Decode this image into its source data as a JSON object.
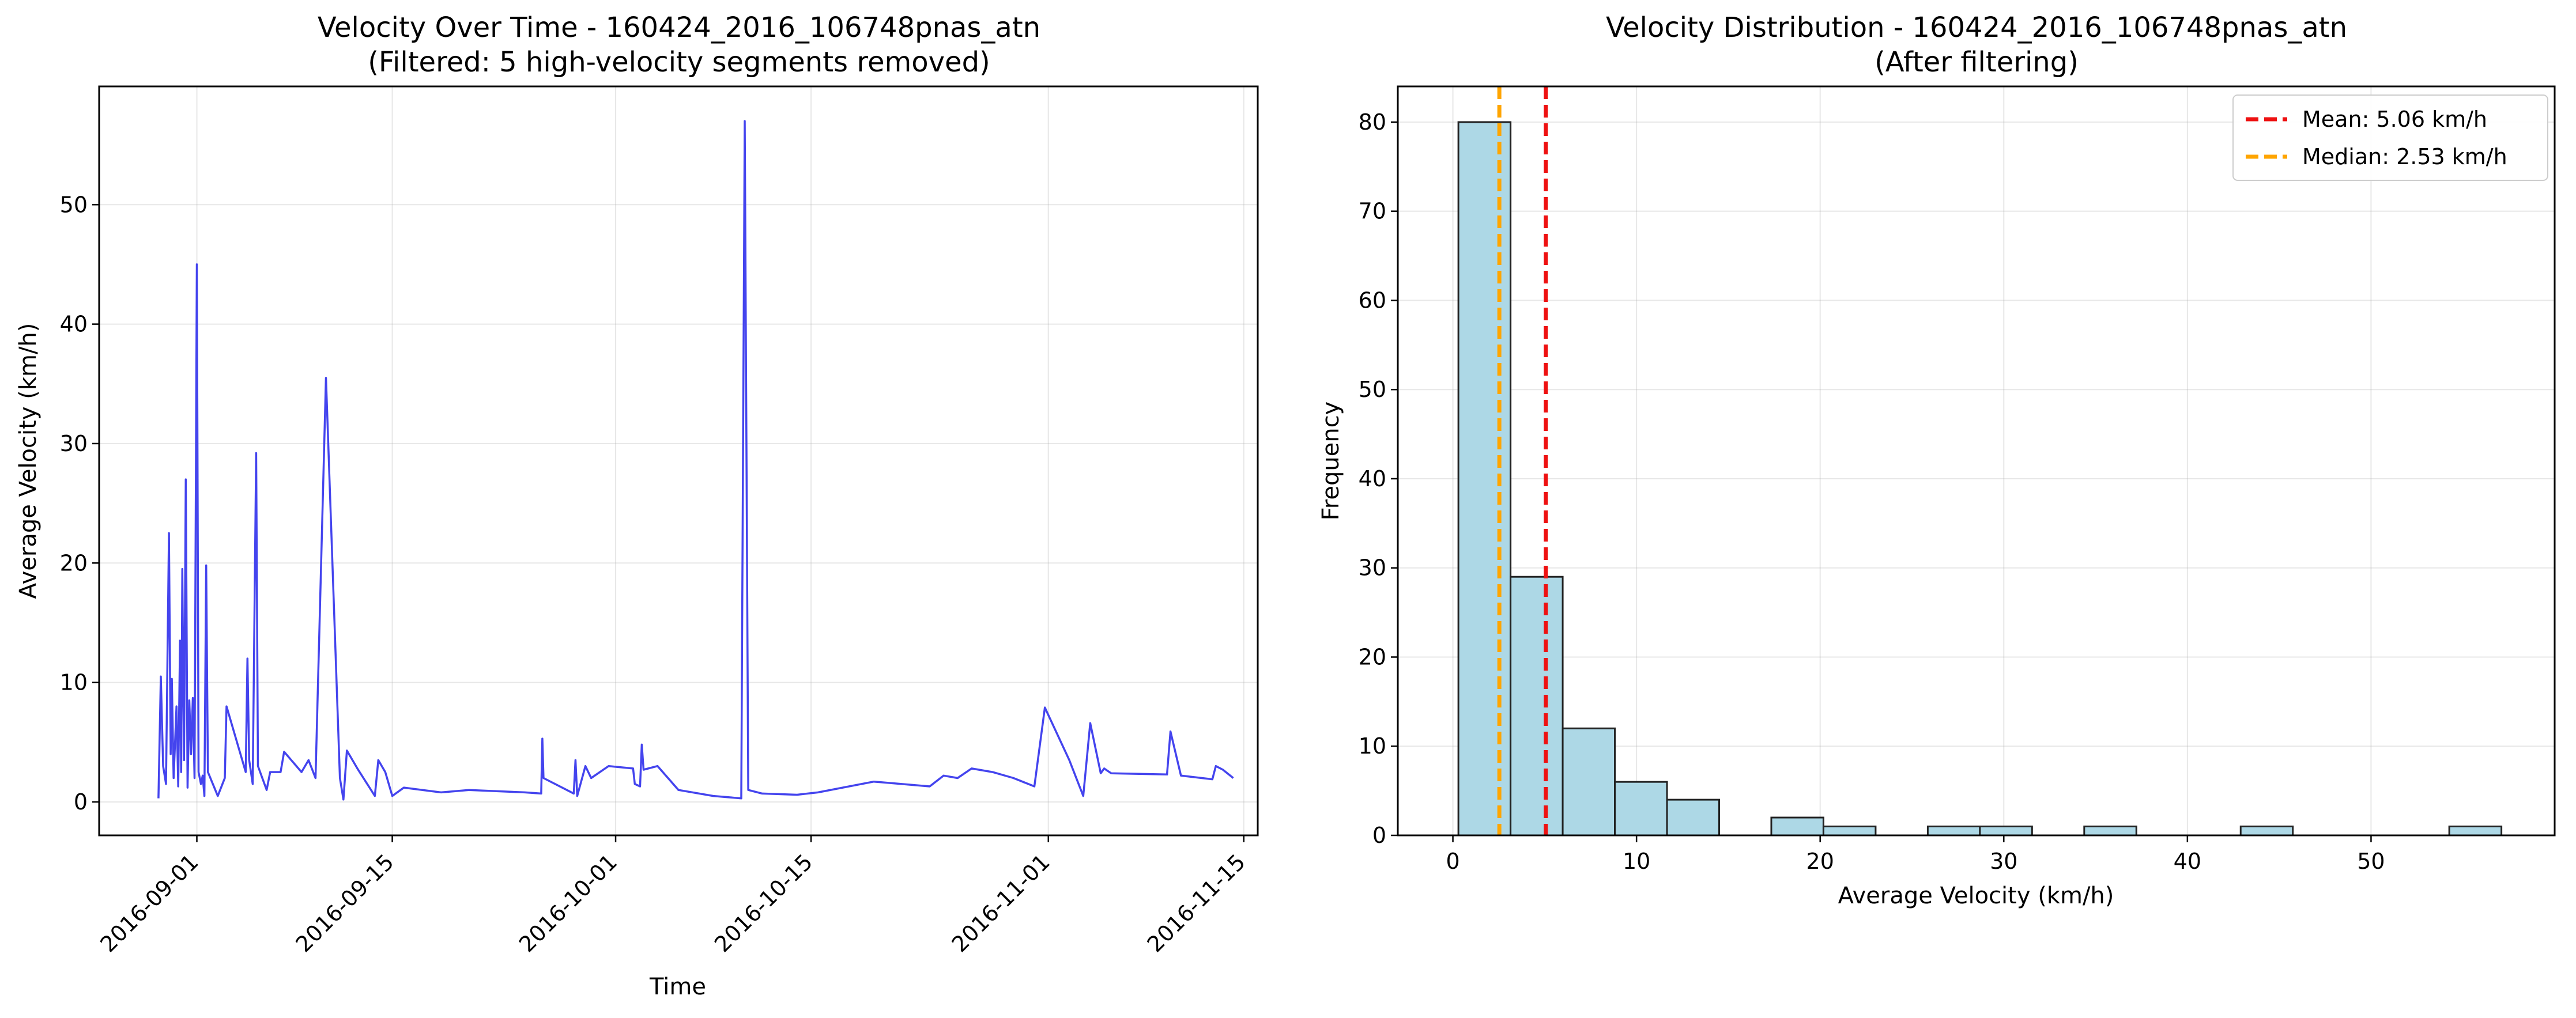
{
  "chart_data": [
    {
      "type": "line",
      "title": "Velocity Over Time - 160424_2016_106748pnas_atn",
      "subtitle": "(Filtered: 5 high-velocity segments removed)",
      "xlabel": "Time",
      "ylabel": "Average Velocity (km/h)",
      "x_tick_labels": [
        "2016-09-01",
        "2016-09-15",
        "2016-10-01",
        "2016-10-15",
        "2016-11-01",
        "2016-11-15"
      ],
      "y_tick_labels": [
        "0",
        "10",
        "20",
        "30",
        "40",
        "50"
      ],
      "xlim": [
        "2016-08-25",
        "2016-11-16"
      ],
      "ylim": [
        -2.8,
        59.9
      ],
      "grid": true,
      "series": [
        {
          "color": "#4444ee",
          "points": [
            [
              "2016-08-29 06:00",
              0.3
            ],
            [
              "2016-08-29 10:00",
              10.5
            ],
            [
              "2016-08-29 14:00",
              3.0
            ],
            [
              "2016-08-29 19:00",
              1.5
            ],
            [
              "2016-08-30 00:00",
              22.5
            ],
            [
              "2016-08-30 03:00",
              4.0
            ],
            [
              "2016-08-30 05:00",
              10.3
            ],
            [
              "2016-08-30 08:00",
              2.0
            ],
            [
              "2016-08-30 13:00",
              8.0
            ],
            [
              "2016-08-30 16:00",
              1.3
            ],
            [
              "2016-08-30 19:00",
              13.5
            ],
            [
              "2016-08-30 21:00",
              2.5
            ],
            [
              "2016-08-30 23:00",
              19.5
            ],
            [
              "2016-08-31 02:00",
              3.5
            ],
            [
              "2016-08-31 05:00",
              27.0
            ],
            [
              "2016-08-31 08:00",
              1.2
            ],
            [
              "2016-08-31 11:00",
              8.5
            ],
            [
              "2016-08-31 14:00",
              4.0
            ],
            [
              "2016-08-31 17:00",
              8.7
            ],
            [
              "2016-08-31 20:00",
              2.0
            ],
            [
              "2016-09-01 00:00",
              45.0
            ],
            [
              "2016-09-01 03:00",
              2.5
            ],
            [
              "2016-09-01 07:00",
              1.5
            ],
            [
              "2016-09-01 10:00",
              2.2
            ],
            [
              "2016-09-01 13:00",
              0.5
            ],
            [
              "2016-09-01 16:00",
              19.8
            ],
            [
              "2016-09-01 19:00",
              2.5
            ],
            [
              "2016-09-02 12:00",
              0.5
            ],
            [
              "2016-09-03 00:00",
              2.0
            ],
            [
              "2016-09-03 03:00",
              8.0
            ],
            [
              "2016-09-04 12:00",
              2.5
            ],
            [
              "2016-09-04 15:00",
              12.0
            ],
            [
              "2016-09-04 18:00",
              3.5
            ],
            [
              "2016-09-05 00:00",
              1.5
            ],
            [
              "2016-09-05 06:00",
              29.2
            ],
            [
              "2016-09-05 09:00",
              3.0
            ],
            [
              "2016-09-06 00:00",
              1.0
            ],
            [
              "2016-09-06 06:00",
              2.5
            ],
            [
              "2016-09-07 00:00",
              2.5
            ],
            [
              "2016-09-07 06:00",
              4.2
            ],
            [
              "2016-09-08 12:00",
              2.5
            ],
            [
              "2016-09-09 00:00",
              3.5
            ],
            [
              "2016-09-09 12:00",
              2.0
            ],
            [
              "2016-09-10 06:00",
              35.5
            ],
            [
              "2016-09-11 06:00",
              2.0
            ],
            [
              "2016-09-11 12:00",
              0.2
            ],
            [
              "2016-09-11 18:00",
              4.3
            ],
            [
              "2016-09-12 12:00",
              2.8
            ],
            [
              "2016-09-13 18:00",
              0.5
            ],
            [
              "2016-09-14 00:00",
              3.5
            ],
            [
              "2016-09-14 12:00",
              2.5
            ],
            [
              "2016-09-15 00:00",
              0.5
            ],
            [
              "2016-09-15 20:00",
              1.2
            ],
            [
              "2016-09-18 12:00",
              0.8
            ],
            [
              "2016-09-20 12:00",
              1.0
            ],
            [
              "2016-09-24 12:00",
              0.8
            ],
            [
              "2016-09-25 16:00",
              0.7
            ],
            [
              "2016-09-25 18:00",
              5.3
            ],
            [
              "2016-09-25 20:00",
              2.0
            ],
            [
              "2016-09-27 12:00",
              1.0
            ],
            [
              "2016-09-28 00:00",
              0.7
            ],
            [
              "2016-09-28 03:00",
              3.5
            ],
            [
              "2016-09-28 06:00",
              0.5
            ],
            [
              "2016-09-28 20:00",
              3.0
            ],
            [
              "2016-09-29 06:00",
              2.0
            ],
            [
              "2016-09-30 12:00",
              3.0
            ],
            [
              "2016-10-02 06:00",
              2.8
            ],
            [
              "2016-10-02 09:00",
              1.5
            ],
            [
              "2016-10-02 18:00",
              1.3
            ],
            [
              "2016-10-02 21:00",
              4.8
            ],
            [
              "2016-10-03 00:00",
              2.7
            ],
            [
              "2016-10-04 00:00",
              3.0
            ],
            [
              "2016-10-05 12:00",
              1.0
            ],
            [
              "2016-10-08 00:00",
              0.5
            ],
            [
              "2016-10-10 00:00",
              0.3
            ],
            [
              "2016-10-10 06:00",
              57.0
            ],
            [
              "2016-10-10 12:00",
              1.0
            ],
            [
              "2016-10-11 12:00",
              0.7
            ],
            [
              "2016-10-14 00:00",
              0.6
            ],
            [
              "2016-10-15 12:00",
              0.8
            ],
            [
              "2016-10-19 12:00",
              1.7
            ],
            [
              "2016-10-23 12:00",
              1.3
            ],
            [
              "2016-10-24 12:00",
              2.2
            ],
            [
              "2016-10-25 12:00",
              2.0
            ],
            [
              "2016-10-26 12:00",
              2.8
            ],
            [
              "2016-10-28 00:00",
              2.5
            ],
            [
              "2016-10-29 12:00",
              2.0
            ],
            [
              "2016-10-31 00:00",
              1.3
            ],
            [
              "2016-10-31 18:00",
              7.9
            ],
            [
              "2016-11-02 12:00",
              3.5
            ],
            [
              "2016-11-03 12:00",
              0.5
            ],
            [
              "2016-11-04 00:00",
              6.6
            ],
            [
              "2016-11-04 18:00",
              2.4
            ],
            [
              "2016-11-05 00:00",
              2.8
            ],
            [
              "2016-11-05 12:00",
              2.4
            ],
            [
              "2016-11-09 12:00",
              2.3
            ],
            [
              "2016-11-09 18:00",
              5.9
            ],
            [
              "2016-11-10 12:00",
              2.2
            ],
            [
              "2016-11-12 18:00",
              1.9
            ],
            [
              "2016-11-13 00:00",
              3.0
            ],
            [
              "2016-11-13 12:00",
              2.7
            ],
            [
              "2016-11-14 06:00",
              2.0
            ]
          ]
        }
      ]
    },
    {
      "type": "histogram",
      "title": "Velocity Distribution - 160424_2016_106748pnas_atn",
      "subtitle": "(After filtering)",
      "xlabel": "Average Velocity (km/h)",
      "ylabel": "Frequency",
      "x_tick_labels": [
        "0",
        "10",
        "20",
        "30",
        "40",
        "50"
      ],
      "y_tick_labels": [
        "0",
        "10",
        "20",
        "30",
        "40",
        "50",
        "60",
        "70",
        "80"
      ],
      "xlim": [
        -3.0,
        60.0
      ],
      "ylim": [
        0,
        84
      ],
      "grid": true,
      "bar_color": "#add8e6",
      "bar_edge_color": "#222222",
      "bins": [
        {
          "x0": 0.3,
          "x1": 3.14,
          "count": 80
        },
        {
          "x0": 3.14,
          "x1": 5.98,
          "count": 29
        },
        {
          "x0": 5.98,
          "x1": 8.82,
          "count": 12
        },
        {
          "x0": 8.82,
          "x1": 11.66,
          "count": 6
        },
        {
          "x0": 11.66,
          "x1": 14.5,
          "count": 4
        },
        {
          "x0": 14.5,
          "x1": 17.34,
          "count": 0
        },
        {
          "x0": 17.34,
          "x1": 20.18,
          "count": 2
        },
        {
          "x0": 20.18,
          "x1": 23.02,
          "count": 1
        },
        {
          "x0": 23.02,
          "x1": 25.86,
          "count": 0
        },
        {
          "x0": 25.86,
          "x1": 28.7,
          "count": 1
        },
        {
          "x0": 28.7,
          "x1": 31.54,
          "count": 1
        },
        {
          "x0": 31.54,
          "x1": 34.38,
          "count": 0
        },
        {
          "x0": 34.38,
          "x1": 37.22,
          "count": 1
        },
        {
          "x0": 37.22,
          "x1": 40.06,
          "count": 0
        },
        {
          "x0": 40.06,
          "x1": 42.9,
          "count": 0
        },
        {
          "x0": 42.9,
          "x1": 45.74,
          "count": 1
        },
        {
          "x0": 45.74,
          "x1": 48.58,
          "count": 0
        },
        {
          "x0": 48.58,
          "x1": 51.42,
          "count": 0
        },
        {
          "x0": 51.42,
          "x1": 54.26,
          "count": 0
        },
        {
          "x0": 54.26,
          "x1": 57.1,
          "count": 1
        }
      ],
      "reference_lines": [
        {
          "label": "Mean: 5.06 km/h",
          "value": 5.06,
          "color": "#ee1111",
          "style": "dashed"
        },
        {
          "label": "Median: 2.53 km/h",
          "value": 2.53,
          "color": "#ffa500",
          "style": "dashed"
        }
      ],
      "legend_position": "top-right"
    }
  ]
}
